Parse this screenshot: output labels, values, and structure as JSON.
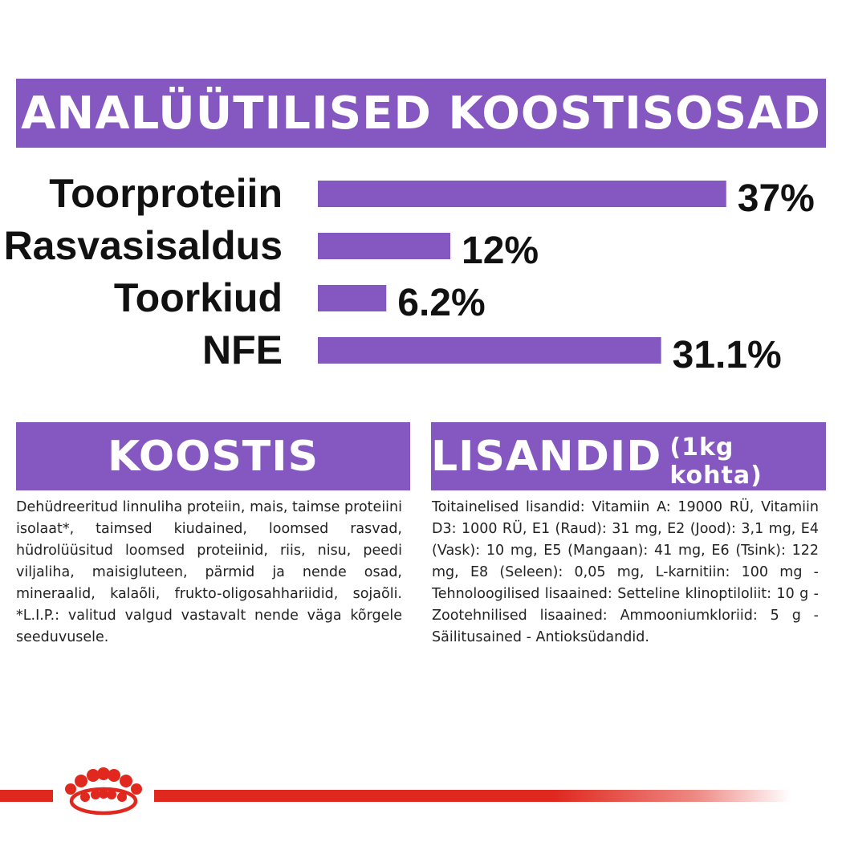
{
  "header": {
    "title": "ANALÜÜTILISED KOOSTISOSAD"
  },
  "chart_data": {
    "type": "bar",
    "orientation": "horizontal",
    "categories": [
      "Toorproteiin",
      "Rasvasisaldus",
      "Toorkiud",
      "NFE"
    ],
    "values": [
      37,
      12,
      6.2,
      31.1
    ],
    "value_labels": [
      "37%",
      "12%",
      "6.2%",
      "31.1%"
    ],
    "unit": "%",
    "bar_color": "#8557c0",
    "grid": false,
    "legend": "none"
  },
  "koostis": {
    "title": "KOOSTIS",
    "text": "Dehüdreeritud linnuliha proteiin, mais, taimse proteiini isolaat*, taimsed kiudained, loomsed rasvad, hüdrolüüsitud loomsed proteiinid, riis, nisu, peedi viljaliha, maisigluteen, pärmid ja nende osad, mineraalid, kalaõli, frukto-oligosahhariidid, sojaõli. *L.I.P.: valitud valgud vastavalt nende väga kõrgele seeduvusele."
  },
  "lisandid": {
    "title": "LISANDID",
    "subtitle": "(1kg kohta)",
    "text": "Toitainelised lisandid: Vitamiin A: 19000 RÜ, Vitamiin D3: 1000 RÜ, E1 (Raud): 31 mg, E2 (Jood): 3,1 mg, E4 (Vask): 10 mg, E5 (Mangaan): 41 mg, E6 (Tsink): 122 mg, E8 (Seleen): 0,05 mg, L-karnitiin: 100 mg - Tehnoloogilised lisaained: Setteline klinoptiloliit: 10 g - Zootehnilised lisaained: Ammooniumkloriid: 5 g - Säilitusained - Antioksüdandid."
  },
  "footer": {
    "logo_icon": "royal-canin-crown-icon",
    "accent_color": "#e0281e"
  }
}
